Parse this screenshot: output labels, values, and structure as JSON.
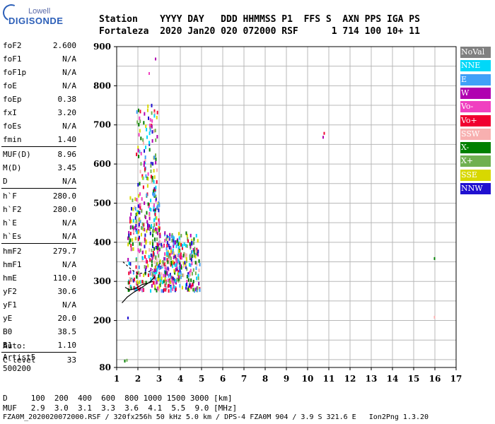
{
  "logo": {
    "top": "Lowell",
    "bottom": "DIGISONDE"
  },
  "header": {
    "line1": "Station    YYYY DAY   DDD HHMMSS P1  FFS S  AXN PPS IGA PS",
    "line2": "Fortaleza  2020 Jan20 020 072000 RSF      1 714 100 10+ 11"
  },
  "params": [
    {
      "name": "foF2",
      "value": "2.600"
    },
    {
      "name": "foF1",
      "value": "N/A"
    },
    {
      "name": "foF1p",
      "value": "N/A"
    },
    {
      "name": "foE",
      "value": "N/A"
    },
    {
      "name": "foEp",
      "value": "0.38"
    },
    {
      "name": "fxI",
      "value": "3.20"
    },
    {
      "name": "foEs",
      "value": "N/A"
    },
    {
      "name": "fmin",
      "value": "1.40"
    },
    {
      "name": "MUF(D)",
      "value": "8.96"
    },
    {
      "name": "M(D)",
      "value": "3.45"
    },
    {
      "name": "D",
      "value": "N/A"
    },
    {
      "name": "h`F",
      "value": "280.0"
    },
    {
      "name": "h`F2",
      "value": "280.0"
    },
    {
      "name": "h`E",
      "value": "N/A"
    },
    {
      "name": "h`Es",
      "value": "N/A"
    },
    {
      "name": "hmF2",
      "value": "279.7"
    },
    {
      "name": "hmF1",
      "value": "N/A"
    },
    {
      "name": "hmE",
      "value": "110.0"
    },
    {
      "name": "yF2",
      "value": "30.6"
    },
    {
      "name": "yF1",
      "value": "N/A"
    },
    {
      "name": "yE",
      "value": "20.0"
    },
    {
      "name": "B0",
      "value": "38.5"
    },
    {
      "name": "B1",
      "value": "1.10"
    },
    {
      "name": "C-level",
      "value": "33"
    }
  ],
  "auto": {
    "line1": "Auto:",
    "line2": "Artist5",
    "line3": "500200"
  },
  "footer": {
    "line1": "D     100  200  400  600  800 1000 1500 3000 [km]",
    "line2": "MUF   2.9  3.0  3.1  3.3  3.6  4.1  5.5  9.0 [MHz]",
    "line3": "FZA0M_2020020072000.RSF / 320fx256h 50 kHz 5.0 km / DPS-4 FZA0M 904 / 3.9 S 321.6 E   Ion2Png 1.3.20"
  },
  "legend": [
    {
      "label": "NoVal",
      "color": "#808080"
    },
    {
      "label": "NNE",
      "color": "#00d8f8"
    },
    {
      "label": "E",
      "color": "#40a0f8"
    },
    {
      "label": "W",
      "color": "#b000b0"
    },
    {
      "label": "Vo-",
      "color": "#f040c0"
    },
    {
      "label": "Vo+",
      "color": "#f00030"
    },
    {
      "label": "SSW",
      "color": "#f8b0b0"
    },
    {
      "label": "X-",
      "color": "#008000"
    },
    {
      "label": "X+",
      "color": "#70b050"
    },
    {
      "label": "SSE",
      "color": "#d8d800"
    },
    {
      "label": "NNW",
      "color": "#2010d0"
    }
  ],
  "chart_data": {
    "type": "scatter",
    "title": "",
    "xlabel": "",
    "ylabel": "",
    "xlim": [
      1,
      17
    ],
    "ylim": [
      80,
      900
    ],
    "xticks": [
      "1",
      "2",
      "3",
      "4",
      "5",
      "6",
      "7",
      "8",
      "9",
      "10",
      "11",
      "12",
      "13",
      "14",
      "15",
      "16",
      "17"
    ],
    "yticks": [
      {
        "value": 80,
        "label": "80"
      },
      {
        "value": 200,
        "label": "200"
      },
      {
        "value": 300,
        "label": "300"
      },
      {
        "value": 400,
        "label": "400"
      },
      {
        "value": 500,
        "label": "500"
      },
      {
        "value": 600,
        "label": "600"
      },
      {
        "value": 700,
        "label": "700"
      },
      {
        "value": 800,
        "label": "800"
      },
      {
        "value": 900,
        "label": "900"
      }
    ],
    "grid": true,
    "traces": [
      {
        "name": "profile",
        "points": [
          [
            1.25,
            245
          ],
          [
            1.5,
            260
          ],
          [
            1.8,
            272
          ],
          [
            2.2,
            285
          ],
          [
            2.6,
            300
          ],
          [
            2.8,
            312
          ]
        ]
      },
      {
        "name": "trace",
        "points": [
          [
            1.4,
            285
          ],
          [
            1.6,
            278
          ],
          [
            1.9,
            282
          ],
          [
            2.2,
            292
          ],
          [
            2.5,
            296
          ],
          [
            2.7,
            300
          ]
        ]
      },
      {
        "name": "dashed",
        "points": [
          [
            1.3,
            350
          ],
          [
            1.7,
            330
          ],
          [
            2.0,
            320
          ],
          [
            2.4,
            322
          ],
          [
            2.7,
            330
          ]
        ]
      }
    ],
    "clusters": [
      {
        "x": [
          1.5,
          4.9
        ],
        "y": [
          280,
          430
        ],
        "n": 420
      },
      {
        "x": [
          1.6,
          3.0
        ],
        "y": [
          430,
          520
        ],
        "n": 120
      },
      {
        "x": [
          1.9,
          2.9
        ],
        "y": [
          520,
          760
        ],
        "n": 110
      },
      {
        "x": [
          2.6,
          4.0
        ],
        "y": [
          300,
          420
        ],
        "n": 120
      }
    ],
    "isolated_points": [
      {
        "x": 1.35,
        "y": 100,
        "color": "#008000"
      },
      {
        "x": 1.45,
        "y": 102,
        "color": "#70b050"
      },
      {
        "x": 1.5,
        "y": 210,
        "color": "#2010d0"
      },
      {
        "x": 10.7,
        "y": 672,
        "color": "#b000b0"
      },
      {
        "x": 10.75,
        "y": 682,
        "color": "#f00030"
      },
      {
        "x": 15.95,
        "y": 362,
        "color": "#008000"
      },
      {
        "x": 15.95,
        "y": 212,
        "color": "#f8b0b0"
      },
      {
        "x": 2.8,
        "y": 872,
        "color": "#b000b0"
      },
      {
        "x": 2.5,
        "y": 835,
        "color": "#f040c0"
      }
    ]
  }
}
